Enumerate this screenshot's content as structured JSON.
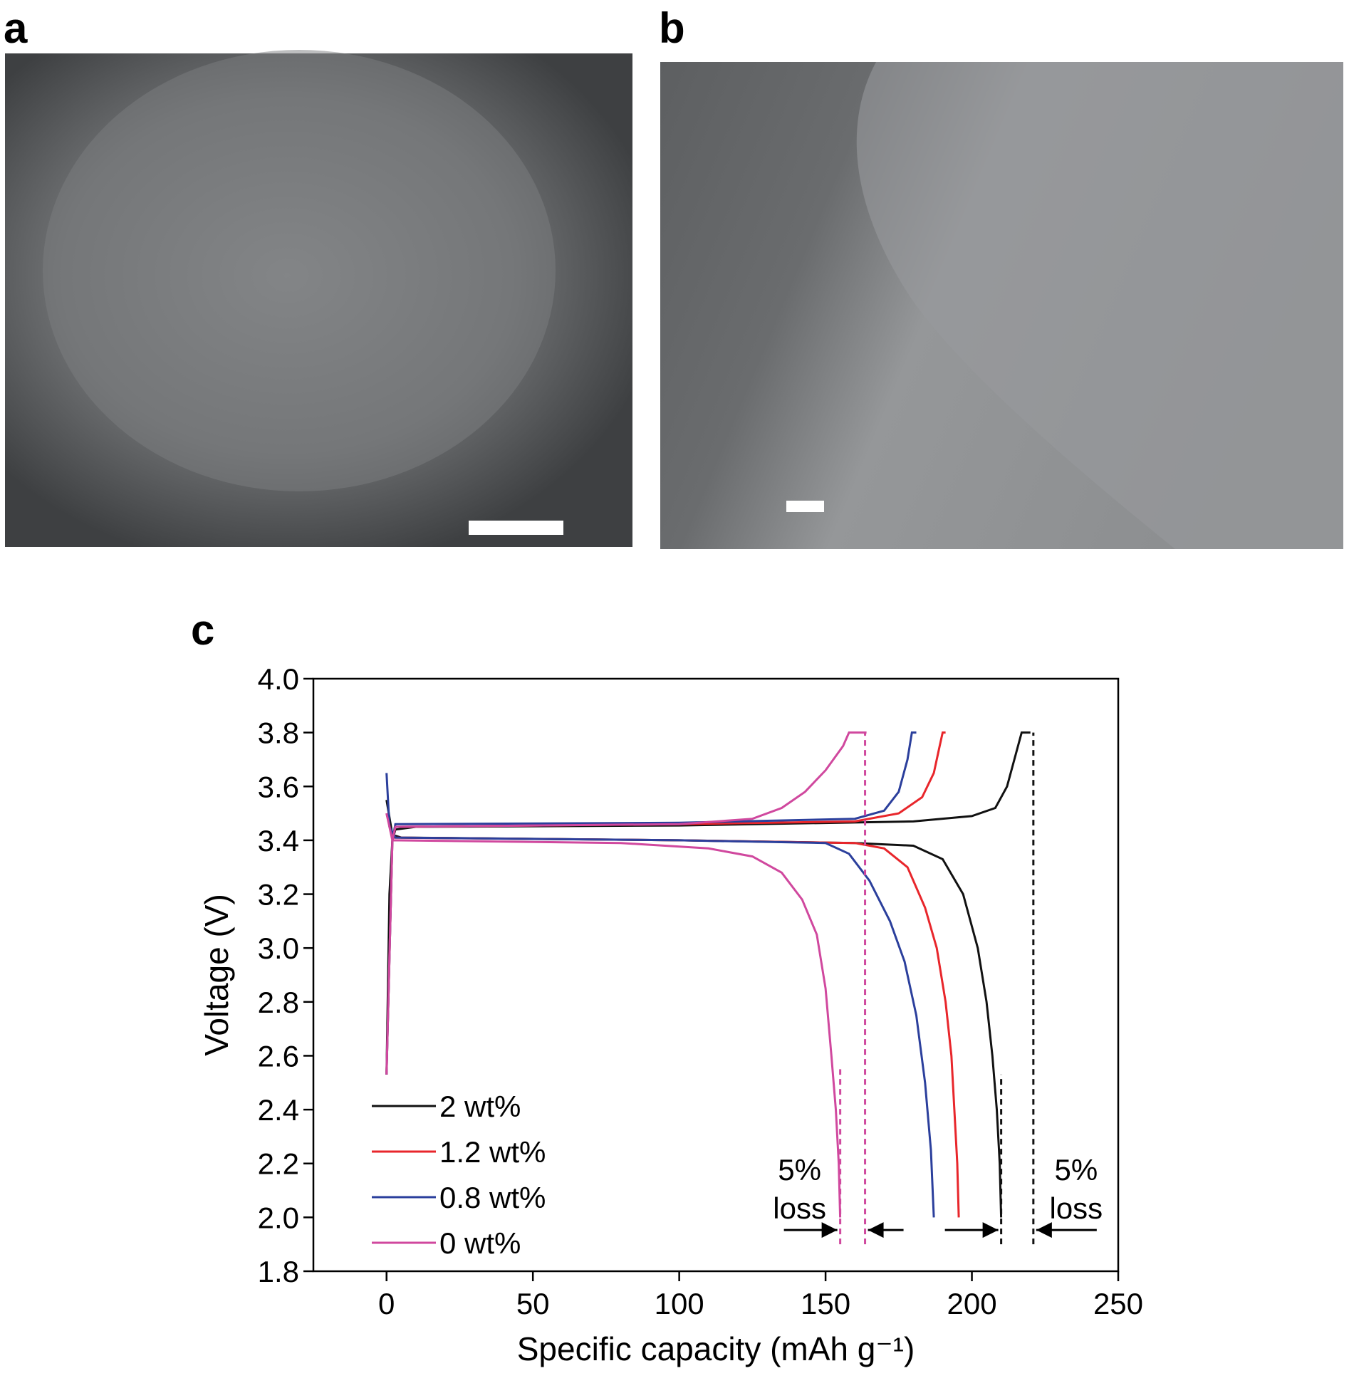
{
  "panels": {
    "a": "a",
    "b": "b",
    "c": "c"
  },
  "chart_data": {
    "type": "line",
    "xlabel": "Specific capacity (mAh g⁻¹)",
    "ylabel": "Voltage (V)",
    "xlim": [
      -25,
      250
    ],
    "ylim": [
      1.8,
      4.0
    ],
    "xticks": [
      0,
      50,
      100,
      150,
      200,
      250
    ],
    "yticks": [
      1.8,
      2.0,
      2.2,
      2.4,
      2.6,
      2.8,
      3.0,
      3.2,
      3.4,
      3.6,
      3.8,
      4.0
    ],
    "ytick_labels": [
      "1.8",
      "2.0",
      "2.2",
      "2.4",
      "2.6",
      "2.8",
      "3.0",
      "3.2",
      "3.4",
      "3.6",
      "3.8",
      "4.0"
    ],
    "legend": "lower left",
    "series": [
      {
        "name": "2 wt%",
        "color": "#111111",
        "x": [
          0,
          1,
          2,
          3,
          10,
          100,
          180,
          200,
          208,
          212,
          215,
          217,
          220,
          null,
          0,
          2,
          5,
          100,
          160,
          180,
          190,
          197,
          202,
          205,
          207,
          208.5,
          209.5,
          210
        ],
        "values": [
          2.53,
          3.2,
          3.4,
          3.44,
          3.45,
          3.455,
          3.47,
          3.49,
          3.52,
          3.6,
          3.72,
          3.8,
          3.8,
          null,
          3.55,
          3.42,
          3.41,
          3.4,
          3.39,
          3.38,
          3.33,
          3.2,
          3.0,
          2.8,
          2.6,
          2.4,
          2.2,
          2.0
        ]
      },
      {
        "name": "1.2 wt%",
        "color": "#e8262b",
        "x": [
          0,
          2,
          3,
          100,
          160,
          175,
          183,
          187,
          189,
          190,
          191,
          null,
          0,
          2,
          100,
          160,
          170,
          178,
          184,
          188,
          191,
          193,
          194,
          195,
          195.5
        ],
        "values": [
          2.53,
          3.4,
          3.45,
          3.46,
          3.47,
          3.5,
          3.56,
          3.65,
          3.75,
          3.8,
          3.8,
          null,
          3.5,
          3.41,
          3.4,
          3.39,
          3.37,
          3.3,
          3.15,
          3.0,
          2.8,
          2.6,
          2.4,
          2.2,
          2.0
        ]
      },
      {
        "name": "0.8 wt%",
        "color": "#2b3f9c",
        "x": [
          0,
          2,
          3,
          100,
          160,
          170,
          175,
          178,
          179.5,
          181,
          null,
          0,
          1,
          3,
          100,
          150,
          158,
          165,
          172,
          177,
          181,
          184,
          186,
          187
        ],
        "values": [
          2.53,
          3.4,
          3.46,
          3.465,
          3.48,
          3.51,
          3.58,
          3.7,
          3.8,
          3.8,
          null,
          3.65,
          3.45,
          3.41,
          3.4,
          3.39,
          3.35,
          3.25,
          3.1,
          2.95,
          2.75,
          2.5,
          2.25,
          2.0
        ]
      },
      {
        "name": "0 wt%",
        "color": "#d0489e",
        "x": [
          0,
          2,
          3,
          100,
          125,
          135,
          143,
          150,
          156,
          158,
          164,
          null,
          0,
          2,
          80,
          110,
          125,
          135,
          142,
          147,
          150,
          152,
          153.5,
          154.5,
          155
        ],
        "values": [
          2.53,
          3.4,
          3.45,
          3.46,
          3.48,
          3.52,
          3.58,
          3.66,
          3.75,
          3.8,
          3.8,
          null,
          3.5,
          3.4,
          3.39,
          3.37,
          3.34,
          3.28,
          3.18,
          3.05,
          2.85,
          2.6,
          2.4,
          2.2,
          2.0
        ]
      }
    ],
    "reference_lines": [
      {
        "x": 155,
        "y": [
          1.9,
          2.55
        ],
        "color": "#d0489e"
      },
      {
        "x": 163.5,
        "y": [
          1.9,
          3.8
        ],
        "color": "#d0489e"
      },
      {
        "x": 210,
        "y": [
          1.9,
          2.53
        ],
        "color": "#111111"
      },
      {
        "x": 221,
        "y": [
          1.9,
          3.8
        ],
        "color": "#111111"
      }
    ],
    "annotations": [
      {
        "lines": [
          "5%",
          "loss"
        ]
      },
      {
        "lines": [
          "5%",
          "loss"
        ]
      }
    ]
  }
}
